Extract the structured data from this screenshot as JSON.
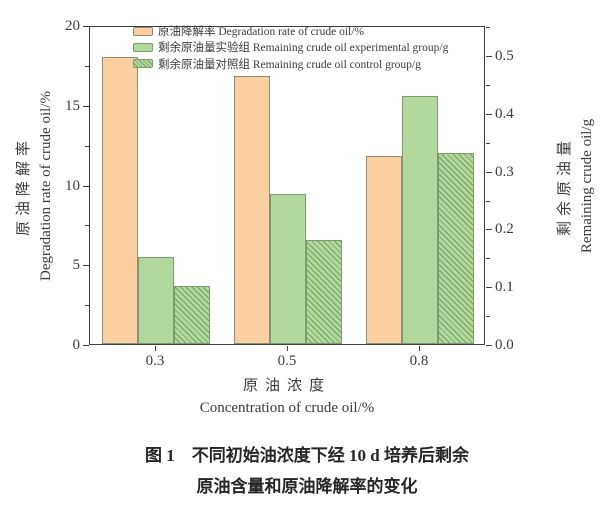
{
  "chart_data": {
    "type": "bar",
    "title": "",
    "categories": [
      "0.3",
      "0.5",
      "0.8"
    ],
    "series": [
      {
        "name": "原油降解率 Degradation rate of crude oil/%",
        "key": "degradation-rate",
        "axis": "left",
        "style": "solid",
        "fill": "#fbcfa0",
        "stroke": "#8e8b7b",
        "values": [
          18.0,
          16.8,
          11.8
        ]
      },
      {
        "name": "剩余原油量实验组 Remaining crude oil experimental group/g",
        "key": "remaining-experimental",
        "axis": "right",
        "style": "solid",
        "fill": "#b2d89c",
        "stroke": "#7e9a71",
        "values": [
          0.15,
          0.26,
          0.43
        ]
      },
      {
        "name": "剩余原油量对照组 Remaining crude oil control group/g",
        "key": "remaining-control",
        "axis": "right",
        "style": "hatched",
        "fill": "#b2d89c",
        "stroke": "#7e9a71",
        "hatch_color": "#74a05e",
        "values": [
          0.1,
          0.18,
          0.33
        ]
      }
    ],
    "left_axis": {
      "label_zh": "原油降解率",
      "label_en": "Degradation rate of crude oil/%",
      "min": 0,
      "max": 20,
      "major_ticks": [
        {
          "label": "0",
          "value": 0
        },
        {
          "label": "5",
          "value": 5
        },
        {
          "label": "10",
          "value": 10
        },
        {
          "label": "15",
          "value": 15
        },
        {
          "label": "20",
          "value": 20
        }
      ],
      "minor_ticks": [
        2.5,
        7.5,
        12.5,
        17.5
      ]
    },
    "right_axis": {
      "label_zh": "剩余原油量",
      "label_en": "Remaining crude oil/g",
      "min": 0,
      "max_labeled": 0.5,
      "major_ticks": [
        {
          "label": "0.0",
          "value": 0
        },
        {
          "label": "0.1",
          "value": 0.1
        },
        {
          "label": "0.2",
          "value": 0.2
        },
        {
          "label": "0.3",
          "value": 0.3
        },
        {
          "label": "0.4",
          "value": 0.4
        },
        {
          "label": "0.5",
          "value": 0.5
        }
      ],
      "minor_ticks": [
        0.05,
        0.15,
        0.25,
        0.35,
        0.45,
        0.55
      ]
    },
    "x_axis": {
      "label_zh": "原油浓度",
      "label_en": "Concentration of crude oil/%"
    },
    "legend_position": "top-inside",
    "grid": false,
    "axis_color": "#3f3f3f",
    "text_color": "#3b3b3b"
  },
  "caption": {
    "line1": "图 1　不同初始油浓度下经 10 d 培养后剩余",
    "line2": "原油含量和原油降解率的变化"
  }
}
